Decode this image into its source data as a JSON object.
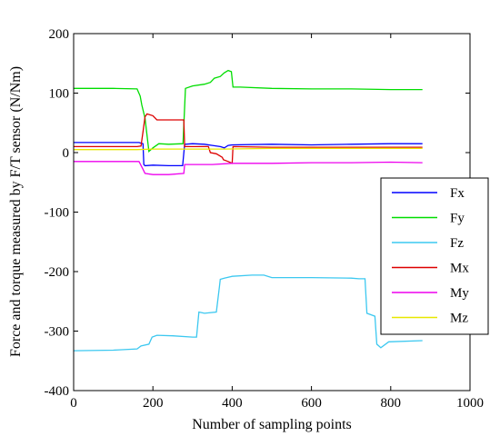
{
  "chart_data": {
    "type": "line",
    "title": "",
    "xlabel": "Number of sampling points",
    "ylabel": "Force and torque measured by F/T sensor (N/Nm)",
    "xlim": [
      0,
      1000
    ],
    "ylim": [
      -400,
      200
    ],
    "xticks": [
      0,
      200,
      400,
      600,
      800,
      1000
    ],
    "yticks": [
      -400,
      -300,
      -200,
      -100,
      0,
      100,
      200
    ],
    "grid": false,
    "legend_position": "right",
    "series": [
      {
        "name": "Fx",
        "color": "#0000ff",
        "points": [
          [
            0,
            17
          ],
          [
            165,
            17
          ],
          [
            175,
            15
          ],
          [
            177,
            -20
          ],
          [
            180,
            -22
          ],
          [
            200,
            -21
          ],
          [
            240,
            -22
          ],
          [
            275,
            -22
          ],
          [
            280,
            14
          ],
          [
            300,
            15
          ],
          [
            330,
            14
          ],
          [
            350,
            12
          ],
          [
            370,
            10
          ],
          [
            380,
            8
          ],
          [
            390,
            12
          ],
          [
            400,
            13
          ],
          [
            500,
            14
          ],
          [
            600,
            13
          ],
          [
            700,
            14
          ],
          [
            800,
            15
          ],
          [
            880,
            15
          ]
        ]
      },
      {
        "name": "Fy",
        "color": "#00dd00",
        "points": [
          [
            0,
            108
          ],
          [
            100,
            108
          ],
          [
            160,
            107
          ],
          [
            168,
            95
          ],
          [
            172,
            80
          ],
          [
            180,
            58
          ],
          [
            190,
            2
          ],
          [
            200,
            8
          ],
          [
            215,
            15
          ],
          [
            240,
            14
          ],
          [
            276,
            15
          ],
          [
            282,
            108
          ],
          [
            300,
            112
          ],
          [
            330,
            115
          ],
          [
            345,
            118
          ],
          [
            355,
            125
          ],
          [
            370,
            128
          ],
          [
            380,
            134
          ],
          [
            390,
            138
          ],
          [
            398,
            136
          ],
          [
            402,
            110
          ],
          [
            420,
            110
          ],
          [
            500,
            108
          ],
          [
            600,
            107
          ],
          [
            700,
            107
          ],
          [
            800,
            106
          ],
          [
            880,
            106
          ]
        ]
      },
      {
        "name": "Fz",
        "color": "#3cc8f0",
        "points": [
          [
            0,
            -333
          ],
          [
            100,
            -332
          ],
          [
            160,
            -330
          ],
          [
            170,
            -325
          ],
          [
            190,
            -322
          ],
          [
            198,
            -310
          ],
          [
            210,
            -307
          ],
          [
            250,
            -308
          ],
          [
            300,
            -310
          ],
          [
            310,
            -310
          ],
          [
            316,
            -268
          ],
          [
            330,
            -270
          ],
          [
            360,
            -268
          ],
          [
            368,
            -225
          ],
          [
            370,
            -213
          ],
          [
            380,
            -211
          ],
          [
            400,
            -208
          ],
          [
            450,
            -206
          ],
          [
            480,
            -206
          ],
          [
            500,
            -210
          ],
          [
            600,
            -210
          ],
          [
            700,
            -211
          ],
          [
            720,
            -212
          ],
          [
            735,
            -212
          ],
          [
            740,
            -270
          ],
          [
            760,
            -275
          ],
          [
            765,
            -322
          ],
          [
            775,
            -328
          ],
          [
            795,
            -318
          ],
          [
            880,
            -316
          ]
        ]
      },
      {
        "name": "Mx",
        "color": "#dd0000",
        "points": [
          [
            0,
            10
          ],
          [
            160,
            10
          ],
          [
            170,
            11
          ],
          [
            175,
            35
          ],
          [
            180,
            60
          ],
          [
            185,
            65
          ],
          [
            200,
            62
          ],
          [
            210,
            55
          ],
          [
            240,
            55
          ],
          [
            278,
            55
          ],
          [
            280,
            10
          ],
          [
            300,
            10
          ],
          [
            340,
            10
          ],
          [
            345,
            0
          ],
          [
            360,
            -2
          ],
          [
            375,
            -8
          ],
          [
            378,
            -12
          ],
          [
            390,
            -15
          ],
          [
            400,
            -18
          ],
          [
            402,
            10
          ],
          [
            500,
            9
          ],
          [
            600,
            9
          ],
          [
            700,
            9
          ],
          [
            800,
            9
          ],
          [
            880,
            9
          ]
        ]
      },
      {
        "name": "My",
        "color": "#ee00ee",
        "points": [
          [
            0,
            -15
          ],
          [
            165,
            -15
          ],
          [
            175,
            -28
          ],
          [
            180,
            -35
          ],
          [
            200,
            -37
          ],
          [
            240,
            -37
          ],
          [
            278,
            -35
          ],
          [
            280,
            -20
          ],
          [
            300,
            -20
          ],
          [
            350,
            -20
          ],
          [
            400,
            -18
          ],
          [
            500,
            -18
          ],
          [
            600,
            -17
          ],
          [
            700,
            -17
          ],
          [
            800,
            -16
          ],
          [
            880,
            -17
          ]
        ]
      },
      {
        "name": "Mz",
        "color": "#e8e800",
        "points": [
          [
            0,
            5
          ],
          [
            160,
            5
          ],
          [
            200,
            6
          ],
          [
            280,
            6
          ],
          [
            380,
            6
          ],
          [
            500,
            7
          ],
          [
            600,
            7
          ],
          [
            700,
            7
          ],
          [
            800,
            7
          ],
          [
            880,
            7
          ]
        ]
      }
    ]
  }
}
